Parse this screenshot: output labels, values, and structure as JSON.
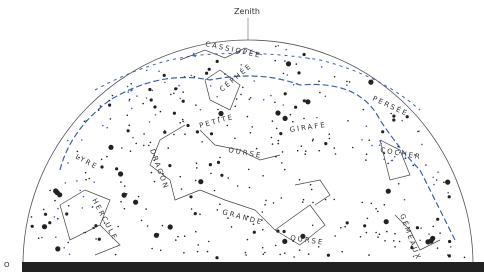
{
  "header": {
    "zenith": "Zenith"
  },
  "horizon": {
    "west": "O"
  },
  "constellations": [
    {
      "label": "CASSIOPÉE"
    },
    {
      "label": "CÉPHÉE"
    },
    {
      "label": "PETITE"
    },
    {
      "label": "OURSE"
    },
    {
      "label": "GIRAFE"
    },
    {
      "label": "LYRE"
    },
    {
      "label": "DRAGON"
    },
    {
      "label": "GRANDE"
    },
    {
      "label": "OURSE"
    },
    {
      "label": "COCHER"
    },
    {
      "label": "PERSÉE"
    },
    {
      "label": "HERCULE"
    },
    {
      "label": "GÉMEAUX"
    }
  ]
}
